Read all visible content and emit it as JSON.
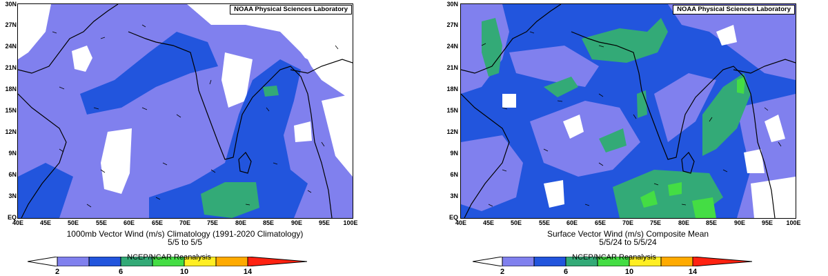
{
  "colors": {
    "land_outline": "#000000",
    "lt2": "#ffffff",
    "c2_6": "#8080ee",
    "c6_8": "#2255dd",
    "c8_10": "#33aa77",
    "c10_12": "#44dd44",
    "c12_14": "#ffee22",
    "c14_16": "#ffaa00",
    "gt16": "#ff2211"
  },
  "axes": {
    "lat_ticks": [
      "EQ",
      "3N",
      "6N",
      "9N",
      "12N",
      "15N",
      "18N",
      "21N",
      "24N",
      "27N",
      "30N"
    ],
    "lon_ticks": [
      "40E",
      "45E",
      "50E",
      "55E",
      "60E",
      "65E",
      "70E",
      "75E",
      "80E",
      "85E",
      "90E",
      "95E",
      "100E"
    ]
  },
  "left": {
    "credit": "NOAA Physical Sciences Laboratory",
    "title_line1": "1000mb Vector Wind (m/s) Climatology (1991-2020 Climatology)",
    "title_line2": "5/5  to 5/5",
    "source": "NCEP/NCAR Reanalysis"
  },
  "right": {
    "credit": "NOAA Physical Sciences Laboratory",
    "title_line1": "Surface Vector Wind (m/s) Composite Mean",
    "title_line2": "5/5/24  to 5/5/24",
    "source": "NCEP/NCAR Reanalysis"
  },
  "colorbar": {
    "labels": [
      "2",
      "6",
      "10",
      "14"
    ]
  }
}
